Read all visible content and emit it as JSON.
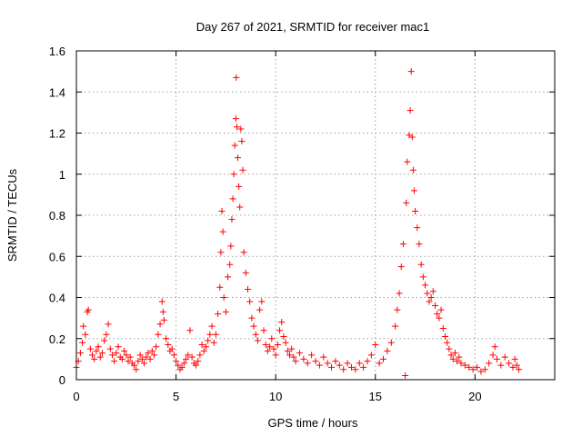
{
  "chart_data": {
    "type": "scatter",
    "title": "Day 267 of 2021, SRMTID for receiver mac1",
    "xlabel": "GPS time / hours",
    "ylabel": "SRMTID / TECUs",
    "xlim": [
      0,
      24
    ],
    "ylim": [
      0,
      1.6
    ],
    "xticks": [
      0,
      5,
      10,
      15,
      20
    ],
    "xtick_labels": [
      "0",
      "5",
      "10",
      "15",
      "20"
    ],
    "yticks": [
      0,
      0.2,
      0.4,
      0.6,
      0.8,
      1.0,
      1.2,
      1.4,
      1.6
    ],
    "ytick_labels": [
      "0",
      "0.2",
      "0.4",
      "0.6",
      "0.8",
      "1",
      "1.2",
      "1.4",
      "1.6"
    ],
    "grid": true,
    "marker": "plus",
    "color": "#ff0000",
    "series": [
      {
        "name": "SRMTID",
        "points": [
          [
            0.0,
            0.06
          ],
          [
            0.1,
            0.09
          ],
          [
            0.2,
            0.13
          ],
          [
            0.3,
            0.18
          ],
          [
            0.35,
            0.26
          ],
          [
            0.45,
            0.22
          ],
          [
            0.55,
            0.33
          ],
          [
            0.6,
            0.34
          ],
          [
            0.7,
            0.15
          ],
          [
            0.8,
            0.12
          ],
          [
            0.9,
            0.1
          ],
          [
            1.0,
            0.14
          ],
          [
            1.1,
            0.16
          ],
          [
            1.2,
            0.11
          ],
          [
            1.3,
            0.13
          ],
          [
            1.4,
            0.19
          ],
          [
            1.5,
            0.22
          ],
          [
            1.6,
            0.27
          ],
          [
            1.7,
            0.15
          ],
          [
            1.8,
            0.12
          ],
          [
            1.9,
            0.09
          ],
          [
            2.0,
            0.13
          ],
          [
            2.1,
            0.16
          ],
          [
            2.2,
            0.11
          ],
          [
            2.3,
            0.1
          ],
          [
            2.4,
            0.14
          ],
          [
            2.5,
            0.12
          ],
          [
            2.6,
            0.09
          ],
          [
            2.7,
            0.11
          ],
          [
            2.8,
            0.08
          ],
          [
            2.9,
            0.07
          ],
          [
            3.0,
            0.05
          ],
          [
            3.1,
            0.09
          ],
          [
            3.2,
            0.12
          ],
          [
            3.3,
            0.1
          ],
          [
            3.4,
            0.08
          ],
          [
            3.5,
            0.11
          ],
          [
            3.6,
            0.13
          ],
          [
            3.7,
            0.1
          ],
          [
            3.8,
            0.14
          ],
          [
            3.9,
            0.12
          ],
          [
            4.0,
            0.16
          ],
          [
            4.1,
            0.22
          ],
          [
            4.2,
            0.27
          ],
          [
            4.3,
            0.38
          ],
          [
            4.35,
            0.33
          ],
          [
            4.4,
            0.29
          ],
          [
            4.5,
            0.2
          ],
          [
            4.6,
            0.17
          ],
          [
            4.7,
            0.14
          ],
          [
            4.8,
            0.15
          ],
          [
            4.9,
            0.12
          ],
          [
            5.0,
            0.09
          ],
          [
            5.1,
            0.07
          ],
          [
            5.2,
            0.05
          ],
          [
            5.3,
            0.06
          ],
          [
            5.4,
            0.08
          ],
          [
            5.5,
            0.1
          ],
          [
            5.6,
            0.12
          ],
          [
            5.7,
            0.24
          ],
          [
            5.8,
            0.11
          ],
          [
            5.9,
            0.08
          ],
          [
            6.0,
            0.07
          ],
          [
            6.1,
            0.09
          ],
          [
            6.2,
            0.12
          ],
          [
            6.3,
            0.17
          ],
          [
            6.4,
            0.14
          ],
          [
            6.5,
            0.16
          ],
          [
            6.6,
            0.19
          ],
          [
            6.7,
            0.22
          ],
          [
            6.8,
            0.26
          ],
          [
            6.9,
            0.18
          ],
          [
            7.0,
            0.22
          ],
          [
            7.1,
            0.32
          ],
          [
            7.2,
            0.45
          ],
          [
            7.25,
            0.62
          ],
          [
            7.3,
            0.82
          ],
          [
            7.35,
            0.72
          ],
          [
            7.4,
            0.4
          ],
          [
            7.5,
            0.33
          ],
          [
            7.6,
            0.5
          ],
          [
            7.7,
            0.56
          ],
          [
            7.75,
            0.65
          ],
          [
            7.8,
            0.78
          ],
          [
            7.85,
            0.88
          ],
          [
            7.9,
            1.0
          ],
          [
            7.95,
            1.14
          ],
          [
            8.0,
            1.27
          ],
          [
            8.02,
            1.47
          ],
          [
            8.05,
            1.23
          ],
          [
            8.1,
            1.08
          ],
          [
            8.15,
            0.94
          ],
          [
            8.2,
            0.84
          ],
          [
            8.25,
            1.22
          ],
          [
            8.3,
            1.16
          ],
          [
            8.35,
            1.02
          ],
          [
            8.4,
            0.62
          ],
          [
            8.5,
            0.52
          ],
          [
            8.6,
            0.44
          ],
          [
            8.7,
            0.38
          ],
          [
            8.8,
            0.3
          ],
          [
            8.9,
            0.26
          ],
          [
            9.0,
            0.22
          ],
          [
            9.1,
            0.19
          ],
          [
            9.2,
            0.34
          ],
          [
            9.3,
            0.38
          ],
          [
            9.4,
            0.24
          ],
          [
            9.5,
            0.17
          ],
          [
            9.6,
            0.14
          ],
          [
            9.7,
            0.16
          ],
          [
            9.8,
            0.2
          ],
          [
            9.9,
            0.15
          ],
          [
            10.0,
            0.12
          ],
          [
            10.1,
            0.17
          ],
          [
            10.2,
            0.24
          ],
          [
            10.3,
            0.28
          ],
          [
            10.4,
            0.21
          ],
          [
            10.5,
            0.18
          ],
          [
            10.6,
            0.14
          ],
          [
            10.7,
            0.12
          ],
          [
            10.8,
            0.15
          ],
          [
            10.9,
            0.11
          ],
          [
            11.0,
            0.09
          ],
          [
            11.2,
            0.13
          ],
          [
            11.4,
            0.1
          ],
          [
            11.6,
            0.08
          ],
          [
            11.8,
            0.12
          ],
          [
            12.0,
            0.09
          ],
          [
            12.2,
            0.07
          ],
          [
            12.4,
            0.11
          ],
          [
            12.6,
            0.08
          ],
          [
            12.8,
            0.06
          ],
          [
            13.0,
            0.09
          ],
          [
            13.2,
            0.07
          ],
          [
            13.4,
            0.05
          ],
          [
            13.6,
            0.08
          ],
          [
            13.8,
            0.06
          ],
          [
            14.0,
            0.05
          ],
          [
            14.2,
            0.08
          ],
          [
            14.4,
            0.06
          ],
          [
            14.6,
            0.09
          ],
          [
            14.8,
            0.12
          ],
          [
            15.0,
            0.17
          ],
          [
            15.2,
            0.08
          ],
          [
            15.4,
            0.1
          ],
          [
            15.6,
            0.14
          ],
          [
            15.8,
            0.18
          ],
          [
            16.0,
            0.26
          ],
          [
            16.1,
            0.34
          ],
          [
            16.2,
            0.42
          ],
          [
            16.3,
            0.55
          ],
          [
            16.4,
            0.66
          ],
          [
            16.5,
            0.02
          ],
          [
            16.55,
            0.86
          ],
          [
            16.6,
            1.06
          ],
          [
            16.7,
            1.19
          ],
          [
            16.75,
            1.31
          ],
          [
            16.8,
            1.5
          ],
          [
            16.85,
            1.18
          ],
          [
            16.9,
            1.02
          ],
          [
            16.95,
            0.92
          ],
          [
            17.0,
            0.82
          ],
          [
            17.1,
            0.74
          ],
          [
            17.2,
            0.66
          ],
          [
            17.3,
            0.56
          ],
          [
            17.4,
            0.5
          ],
          [
            17.5,
            0.46
          ],
          [
            17.6,
            0.42
          ],
          [
            17.7,
            0.38
          ],
          [
            17.8,
            0.4
          ],
          [
            17.9,
            0.43
          ],
          [
            18.0,
            0.36
          ],
          [
            18.1,
            0.32
          ],
          [
            18.2,
            0.3
          ],
          [
            18.3,
            0.34
          ],
          [
            18.4,
            0.25
          ],
          [
            18.5,
            0.21
          ],
          [
            18.6,
            0.18
          ],
          [
            18.7,
            0.15
          ],
          [
            18.8,
            0.12
          ],
          [
            18.9,
            0.1
          ],
          [
            19.0,
            0.13
          ],
          [
            19.1,
            0.09
          ],
          [
            19.2,
            0.11
          ],
          [
            19.3,
            0.08
          ],
          [
            19.5,
            0.07
          ],
          [
            19.7,
            0.06
          ],
          [
            19.9,
            0.05
          ],
          [
            20.1,
            0.06
          ],
          [
            20.3,
            0.04
          ],
          [
            20.5,
            0.05
          ],
          [
            20.7,
            0.08
          ],
          [
            20.9,
            0.12
          ],
          [
            21.0,
            0.16
          ],
          [
            21.1,
            0.1
          ],
          [
            21.3,
            0.07
          ],
          [
            21.5,
            0.11
          ],
          [
            21.7,
            0.08
          ],
          [
            21.9,
            0.06
          ],
          [
            22.0,
            0.1
          ],
          [
            22.1,
            0.07
          ],
          [
            22.2,
            0.05
          ]
        ]
      }
    ]
  }
}
